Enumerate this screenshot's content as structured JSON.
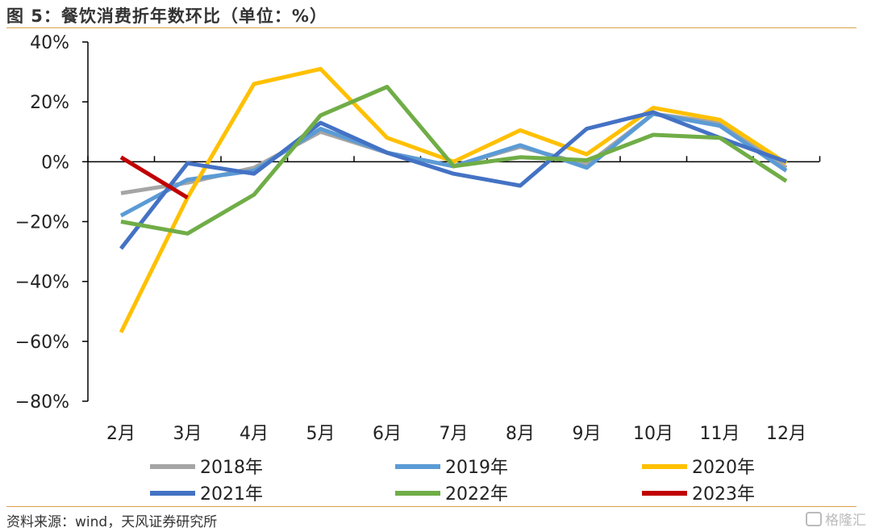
{
  "header": {
    "title": "图 5：餐饮消费折年数环比（单位：%）"
  },
  "footer": {
    "source": "资料来源：wind，天风证券研究所",
    "watermark_text": "格隆汇",
    "watermark_icon": "logo-icon"
  },
  "colors": {
    "accent_rule": "#d9a24a",
    "axis": "#000000"
  },
  "chart_data": {
    "type": "line",
    "title": "图 5：餐饮消费折年数环比（单位：%）",
    "xlabel": "",
    "ylabel": "",
    "categories": [
      "2月",
      "3月",
      "4月",
      "5月",
      "6月",
      "7月",
      "8月",
      "9月",
      "10月",
      "11月",
      "12月"
    ],
    "ylim": [
      -80,
      40
    ],
    "yticks": [
      40,
      20,
      0,
      -20,
      -40,
      -60,
      -80
    ],
    "ytick_labels": [
      "40%",
      "20%",
      "0%",
      "−20%",
      "−40%",
      "−60%",
      "−80%"
    ],
    "grid": false,
    "legend_position": "bottom",
    "series": [
      {
        "name": "2018年",
        "color": "#a5a5a5",
        "values": [
          -10.5,
          -7,
          -2,
          10,
          3,
          -1.5,
          5,
          -1,
          16,
          13,
          -2
        ]
      },
      {
        "name": "2019年",
        "color": "#5b9bd5",
        "values": [
          -18,
          -6,
          -3,
          11,
          3,
          -1.5,
          5.5,
          -2,
          16,
          12,
          -3
        ]
      },
      {
        "name": "2020年",
        "color": "#ffc000",
        "values": [
          -57,
          -12,
          26,
          31,
          8,
          0,
          10.5,
          2.5,
          18,
          14,
          -0.5
        ]
      },
      {
        "name": "2021年",
        "color": "#4472c4",
        "values": [
          -29,
          -0.5,
          -4,
          13,
          3,
          -4,
          -8,
          11,
          16.5,
          8,
          0
        ]
      },
      {
        "name": "2022年",
        "color": "#70ad47",
        "values": [
          -20,
          -24,
          -11,
          15.5,
          25,
          -1.5,
          1.5,
          0.5,
          9,
          8,
          -6.5
        ]
      },
      {
        "name": "2023年",
        "color": "#c00000",
        "values": [
          1.5,
          -12,
          null,
          null,
          null,
          null,
          null,
          null,
          null,
          null,
          null
        ]
      }
    ]
  }
}
